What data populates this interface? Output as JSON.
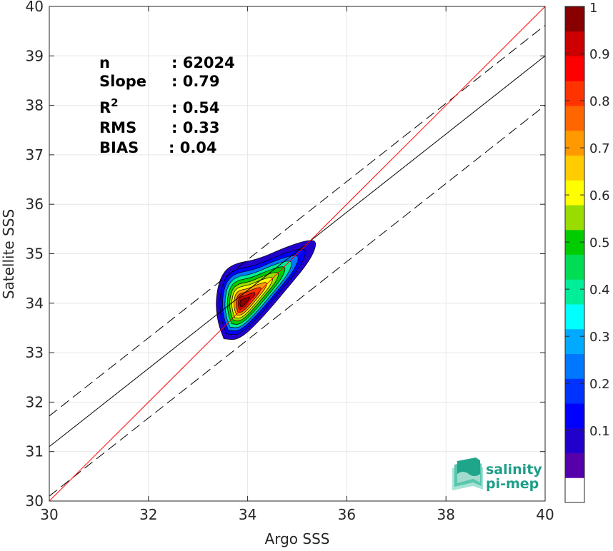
{
  "chart_data": {
    "type": "density-scatter",
    "xlabel": "Argo SSS",
    "ylabel": "Satellite SSS",
    "xlim": [
      30,
      40
    ],
    "ylim": [
      30,
      40
    ],
    "xticks": [
      "30",
      "32",
      "34",
      "36",
      "38",
      "40"
    ],
    "yticks": [
      "30",
      "31",
      "32",
      "33",
      "34",
      "35",
      "36",
      "37",
      "38",
      "39",
      "40"
    ],
    "grid": true,
    "stats": [
      {
        "label": "n",
        "value": ": 62024"
      },
      {
        "label": "Slope",
        "value": ": 0.79"
      },
      {
        "label": "R",
        "sup": "2",
        "value": ": 0.54"
      },
      {
        "label": "RMS",
        "value": ": 0.33"
      },
      {
        "label": "BIAS",
        "value": ": 0.04"
      }
    ],
    "reference_lines": {
      "identity": {
        "slope": 1,
        "intercept": 0,
        "color": "#ff0000"
      },
      "regression": {
        "slope": 0.79,
        "x0": 30,
        "y0": 31.1,
        "color": "#000000"
      },
      "upper_envelope": {
        "x0": 30,
        "y0": 31.72,
        "slope": 0.79,
        "style": "dashed"
      },
      "lower_envelope": {
        "x0": 30,
        "y0": 30.1,
        "slope": 0.79,
        "style": "dashed"
      }
    },
    "density_center": {
      "x": 33.9,
      "y": 34.0
    },
    "colorbar": {
      "ticks": [
        "0.1",
        "0.2",
        "0.3",
        "0.4",
        "0.5",
        "0.6",
        "0.7",
        "0.8",
        "0.9",
        "1"
      ],
      "min": 0,
      "max": 1,
      "colors": [
        "#ffffff",
        "#5500aa",
        "#2200cc",
        "#0000ff",
        "#0033ff",
        "#0077ff",
        "#00aaff",
        "#00ffff",
        "#00ee99",
        "#00dd55",
        "#00cc00",
        "#99dd00",
        "#ffff00",
        "#ffcc00",
        "#ff9900",
        "#ff6600",
        "#ff3300",
        "#ff0000",
        "#cc0000",
        "#880000"
      ]
    }
  },
  "logo": {
    "line1": "salinity",
    "line2": "pi-mep"
  }
}
